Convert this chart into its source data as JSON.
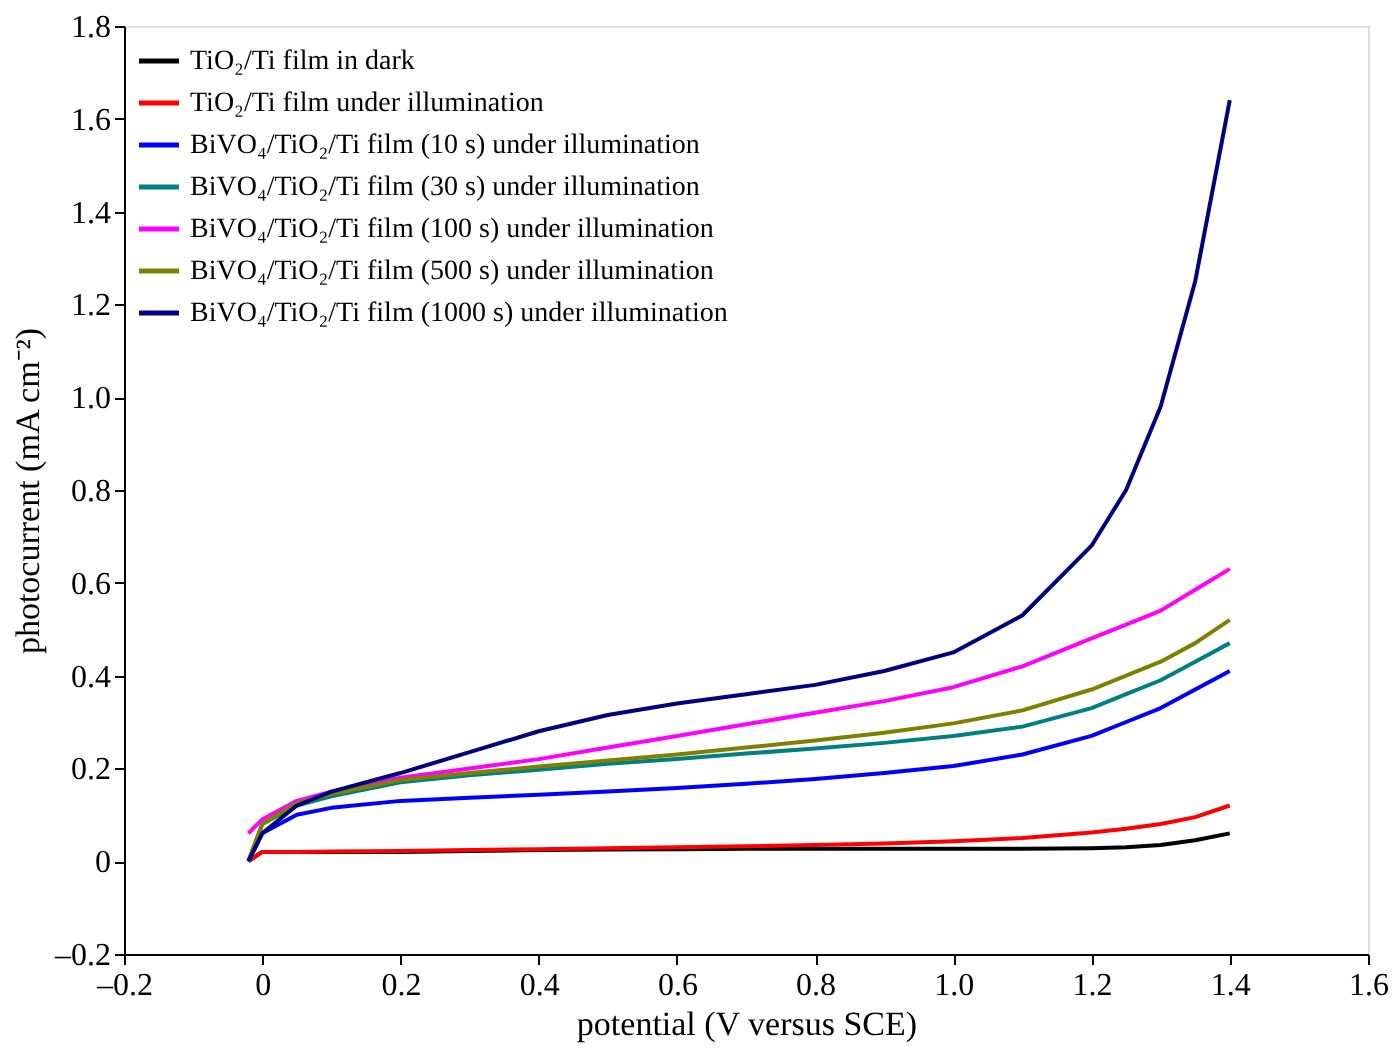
{
  "chart_data": {
    "type": "line",
    "xlabel": "potential (V versus SCE)",
    "ylabel": "photocurrent (mA cm⁻²)",
    "x": [
      -0.02,
      0.0,
      0.05,
      0.1,
      0.2,
      0.3,
      0.4,
      0.5,
      0.6,
      0.7,
      0.8,
      0.9,
      1.0,
      1.1,
      1.2,
      1.25,
      1.3,
      1.35,
      1.4
    ],
    "series": [
      {
        "name": "TiO₂/Ti film in dark",
        "color": "#000000",
        "values": [
          0.0,
          0.02,
          0.02,
          0.02,
          0.02,
          0.022,
          0.024,
          0.025,
          0.026,
          0.027,
          0.027,
          0.027,
          0.027,
          0.027,
          0.028,
          0.03,
          0.035,
          0.045,
          0.06
        ]
      },
      {
        "name": "TiO₂/Ti film under illumination",
        "color": "#ff0000",
        "values": [
          0.0,
          0.02,
          0.02,
          0.021,
          0.022,
          0.024,
          0.026,
          0.028,
          0.03,
          0.032,
          0.035,
          0.038,
          0.043,
          0.05,
          0.062,
          0.07,
          0.08,
          0.095,
          0.12
        ]
      },
      {
        "name": "BiVO₄/TiO₂/Ti film (10 s) under illumination",
        "color": "#0000ff",
        "values": [
          0.0,
          0.06,
          0.1,
          0.115,
          0.13,
          0.137,
          0.143,
          0.15,
          0.158,
          0.167,
          0.177,
          0.19,
          0.205,
          0.23,
          0.27,
          0.3,
          0.33,
          0.37,
          0.41
        ]
      },
      {
        "name": "BiVO₄/TiO₂/Ti film (30 s) under illumination",
        "color": "#008080",
        "values": [
          0.0,
          0.08,
          0.12,
          0.14,
          0.17,
          0.185,
          0.197,
          0.21,
          0.22,
          0.232,
          0.243,
          0.255,
          0.27,
          0.29,
          0.33,
          0.36,
          0.39,
          0.43,
          0.47
        ]
      },
      {
        "name": "BiVO₄/TiO₂/Ti film (100 s) under illumination",
        "color": "#ff00ff",
        "values": [
          0.06,
          0.09,
          0.13,
          0.15,
          0.18,
          0.2,
          0.22,
          0.245,
          0.27,
          0.295,
          0.32,
          0.345,
          0.375,
          0.42,
          0.48,
          0.51,
          0.54,
          0.585,
          0.63
        ]
      },
      {
        "name": "BiVO₄/TiO₂/Ti film (500 s) under illumination",
        "color": "#808000",
        "values": [
          0.0,
          0.08,
          0.125,
          0.145,
          0.175,
          0.19,
          0.204,
          0.217,
          0.23,
          0.245,
          0.26,
          0.277,
          0.297,
          0.325,
          0.37,
          0.4,
          0.43,
          0.47,
          0.52
        ]
      },
      {
        "name": "BiVO₄/TiO₂/Ti film (1000 s) under illumination",
        "color": "#000080",
        "values": [
          0.0,
          0.06,
          0.12,
          0.15,
          0.19,
          0.235,
          0.28,
          0.315,
          0.34,
          0.36,
          0.38,
          0.41,
          0.45,
          0.53,
          0.68,
          0.8,
          0.98,
          1.25,
          1.64
        ]
      }
    ],
    "xlim": [
      -0.2,
      1.6
    ],
    "xticks": [
      {
        "value": -0.2,
        "label": "–0.2"
      },
      0,
      0.2,
      0.4,
      0.6,
      0.8,
      {
        "value": 1,
        "label": "1.0"
      },
      1.2,
      1.4,
      1.6
    ],
    "ylim": [
      -0.2,
      1.8
    ],
    "yticks": [
      {
        "value": -0.2,
        "label": "–0.2"
      },
      0,
      0.2,
      0.4,
      0.6,
      0.8,
      {
        "value": 1,
        "label": "1.0"
      },
      1.2,
      1.4,
      1.6,
      1.8
    ],
    "grid": false,
    "legend": "top left",
    "line_style": "solid",
    "marker": "none"
  }
}
